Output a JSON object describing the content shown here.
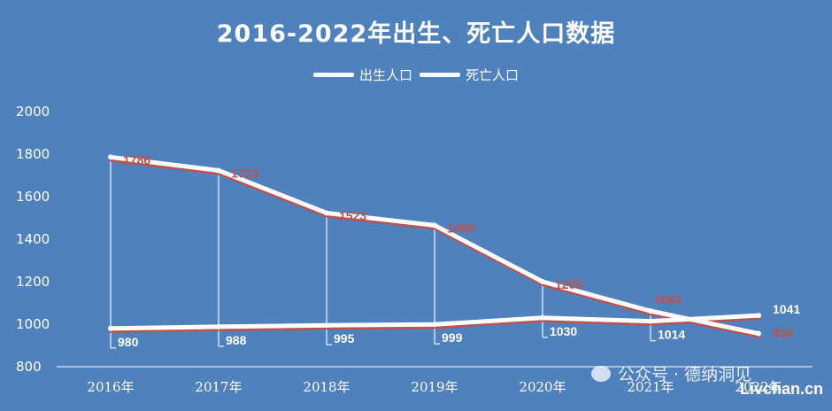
{
  "chart_data": {
    "type": "line",
    "title": "2016-2022年出生、死亡人口数据",
    "categories": [
      "2016年",
      "2017年",
      "2018年",
      "2019年",
      "2020年",
      "2021年",
      "2022年"
    ],
    "series": [
      {
        "name": "出生人口",
        "values": [
          1786,
          1723,
          1523,
          1465,
          1200,
          1062,
          956
        ],
        "label_color": "#c0504d"
      },
      {
        "name": "死亡人口",
        "values": [
          980,
          988,
          995,
          999,
          1030,
          1014,
          1041
        ],
        "label_color": "#ffffff"
      }
    ],
    "ylim": [
      800,
      2000
    ],
    "yticks": [
      800,
      1000,
      1200,
      1400,
      1600,
      1800,
      2000
    ],
    "grid": false,
    "legend_position": "top",
    "colors": {
      "background": "#4f81bd",
      "line": "#ffffff",
      "shadow": "#c0504d"
    }
  },
  "watermark": {
    "text": "公众号 · 德纳洞见",
    "site": "Livchan.cn"
  }
}
